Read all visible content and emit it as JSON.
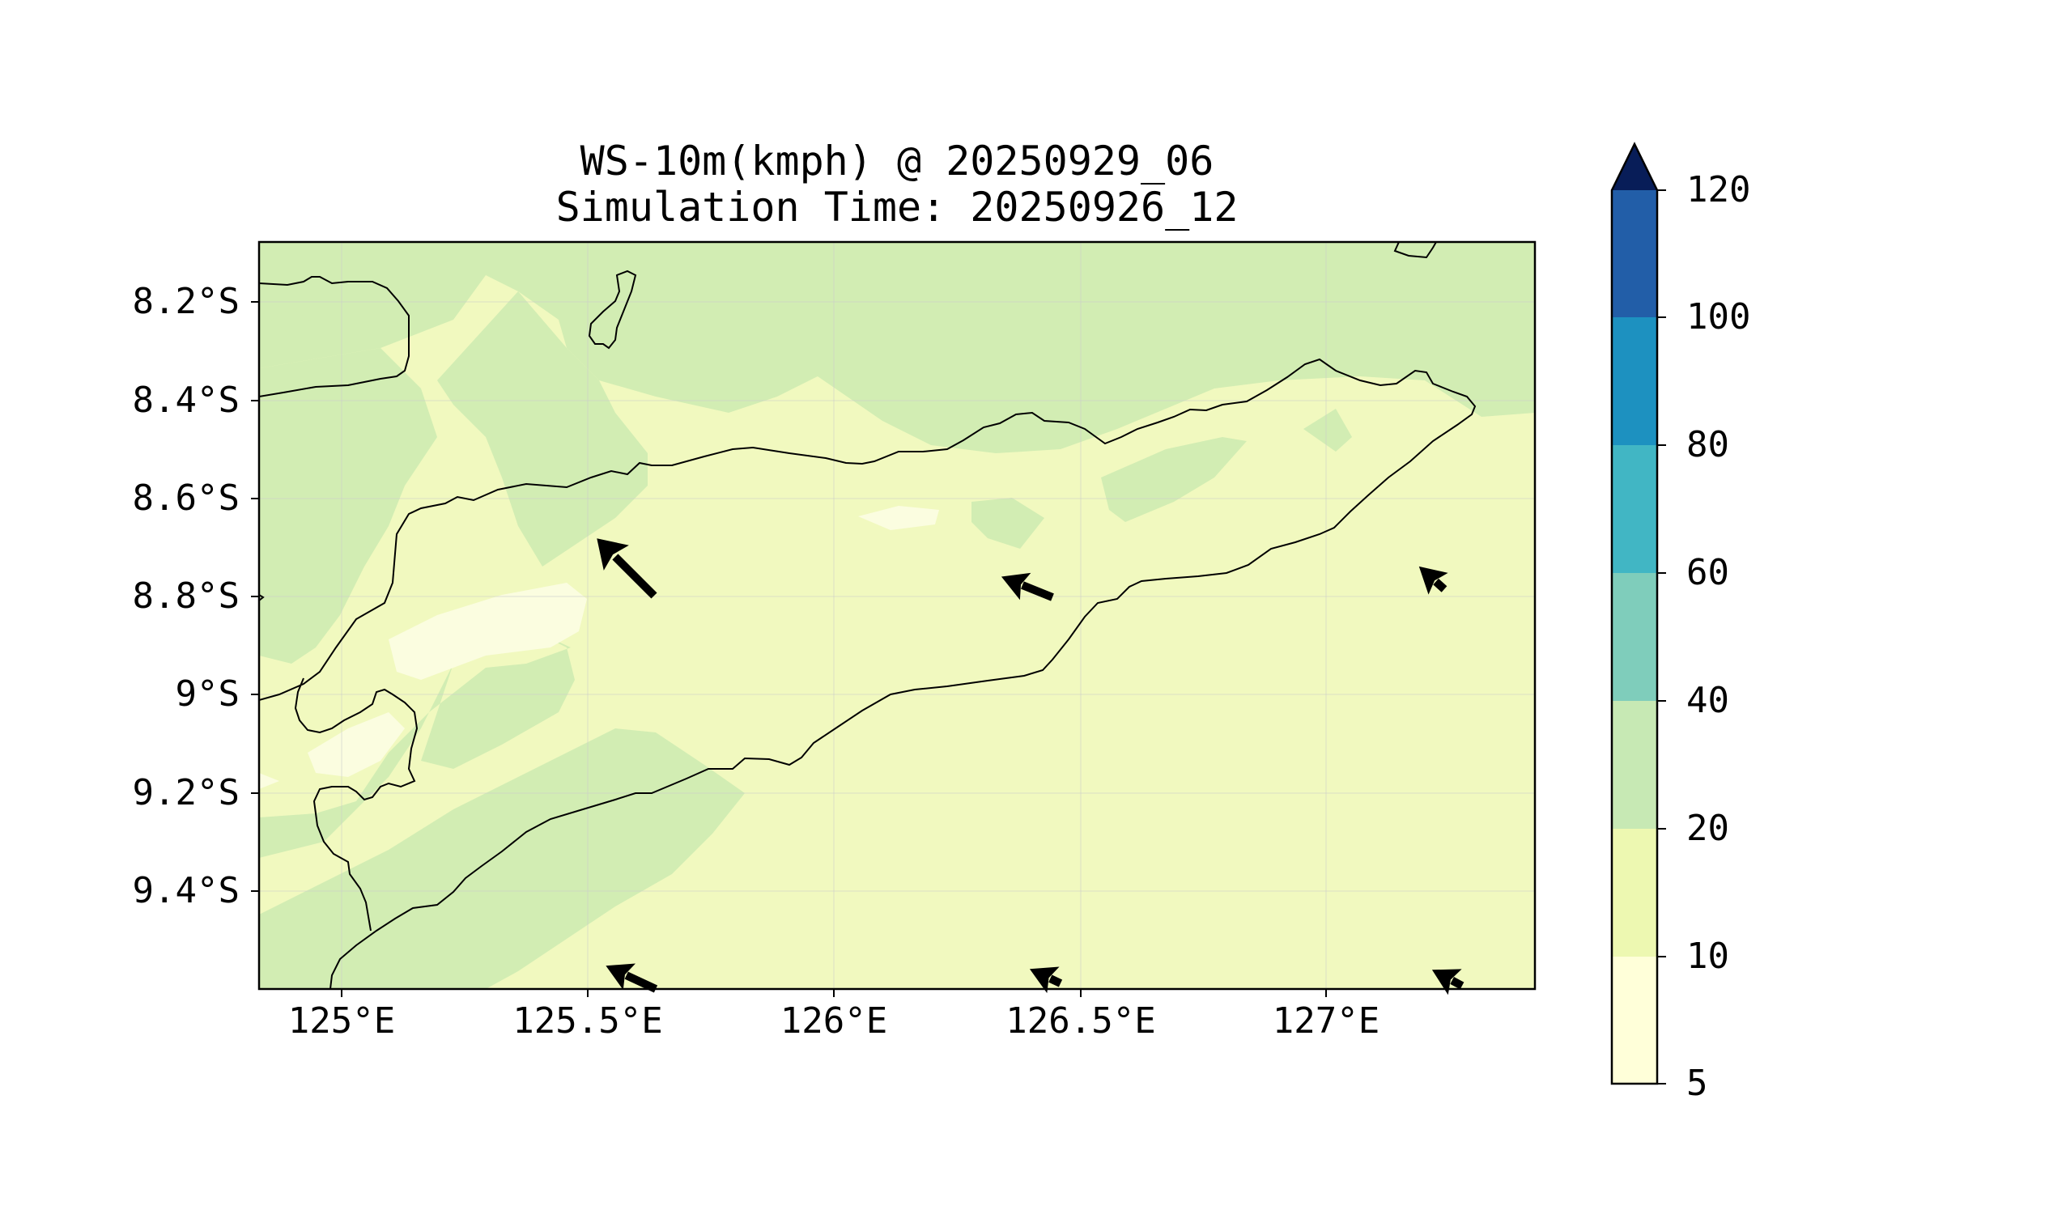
{
  "title_line1": "WS-10m(kmph) @ 20250929_06",
  "title_line2": "Simulation Time: 20250926_12",
  "map": {
    "lon_range": [
      124.83,
      127.42
    ],
    "lat_range": [
      -9.6,
      -8.08
    ],
    "lat_ticks": [
      "8.2°S",
      "8.4°S",
      "8.6°S",
      "8.8°S",
      "9°S",
      "9.2°S",
      "9.4°S"
    ],
    "lon_ticks": [
      "125°E",
      "125.5°E",
      "126°E",
      "126.5°E",
      "127°E"
    ],
    "grid": true,
    "land_outline_color": "#000000",
    "wind_arrows": [
      {
        "lon": 125.65,
        "lat": -8.8,
        "direction": "northwest"
      },
      {
        "lon": 126.45,
        "lat": -8.8,
        "direction": "west-northwest"
      },
      {
        "lon": 127.25,
        "lat": -8.8,
        "direction": "northwest"
      },
      {
        "lon": 125.65,
        "lat": -9.6,
        "direction": "west-northwest"
      },
      {
        "lon": 126.45,
        "lat": -9.6,
        "direction": "west-northwest"
      },
      {
        "lon": 127.25,
        "lat": -9.6,
        "direction": "west-northwest"
      }
    ]
  },
  "colorbar": {
    "levels": [
      "5",
      "10",
      "20",
      "40",
      "60",
      "80",
      "100",
      "120"
    ],
    "colors": [
      "#ffffd9",
      "#edf8b1",
      "#c7e9b4",
      "#7fcdbb",
      "#41b6c4",
      "#1d91c0",
      "#225ea8",
      "#0c2c84"
    ],
    "extend": "max",
    "extend_color": "#081d58"
  },
  "contour_colors": {
    "below_10": "#fbfde0",
    "10_20": "#f1f9bf",
    "20_40": "#d2edb3"
  }
}
